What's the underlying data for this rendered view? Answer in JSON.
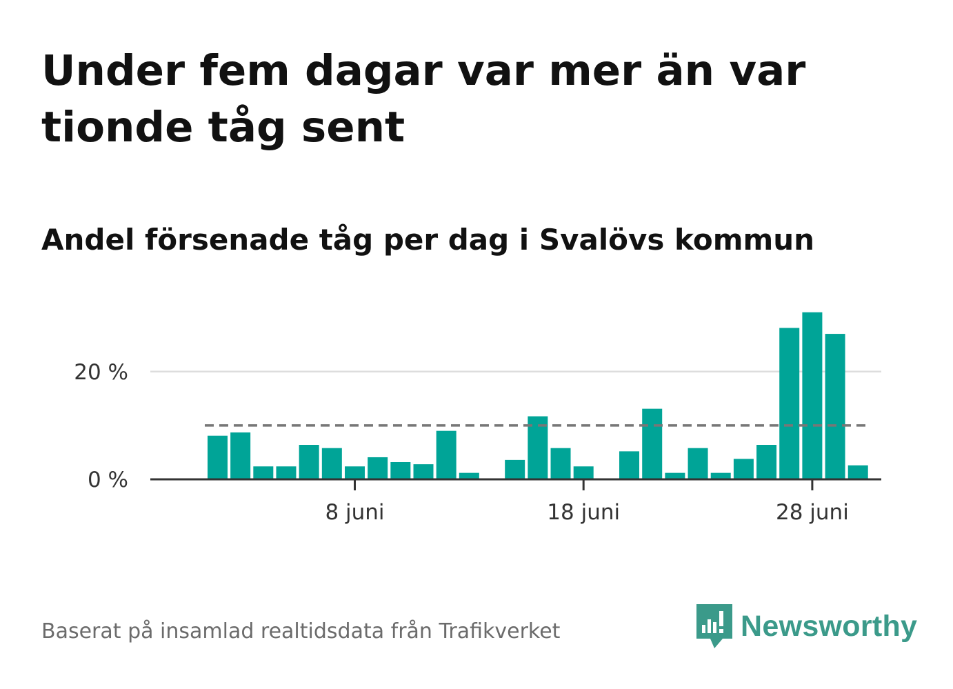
{
  "title": "Under fem dagar var mer än var tionde tåg sent",
  "subtitle": "Andel försenade tåg per dag i Svalövs kommun",
  "footer": "Baserat på insamlad realtidsdata från Trafikverket",
  "brand": "Newsworthy",
  "colors": {
    "bar": "#00a497",
    "threshold": "#777777",
    "grid": "#dddddd",
    "axis": "#333333",
    "brand": "#3b9a8a"
  },
  "chart_data": {
    "type": "bar",
    "x_start_day": 1,
    "x_end_day": 30,
    "xlabel": "",
    "ylabel": "",
    "ylim": [
      0,
      32
    ],
    "y_ticks": [
      {
        "value": 0,
        "label": "0 %"
      },
      {
        "value": 20,
        "label": "20 %"
      }
    ],
    "x_ticks": [
      {
        "day": 8,
        "label": "8 juni"
      },
      {
        "day": 18,
        "label": "18 juni"
      },
      {
        "day": 28,
        "label": "28 juni"
      }
    ],
    "threshold": 10,
    "series": [
      {
        "days": [
          2,
          3,
          4,
          5,
          6,
          7,
          8,
          9,
          10,
          11,
          12,
          13,
          14,
          15,
          16,
          17,
          18,
          19,
          20,
          21,
          22,
          23,
          24,
          25,
          26,
          27,
          28,
          29,
          30
        ],
        "values": [
          8.1,
          8.7,
          2.4,
          2.4,
          6.4,
          5.8,
          2.4,
          4.1,
          3.2,
          2.8,
          9.0,
          1.2,
          0,
          3.6,
          11.7,
          5.8,
          2.4,
          0,
          5.2,
          13.1,
          1.2,
          5.8,
          1.2,
          3.8,
          6.4,
          28.1,
          31.0,
          27.0,
          2.6
        ]
      }
    ],
    "grid": true
  }
}
